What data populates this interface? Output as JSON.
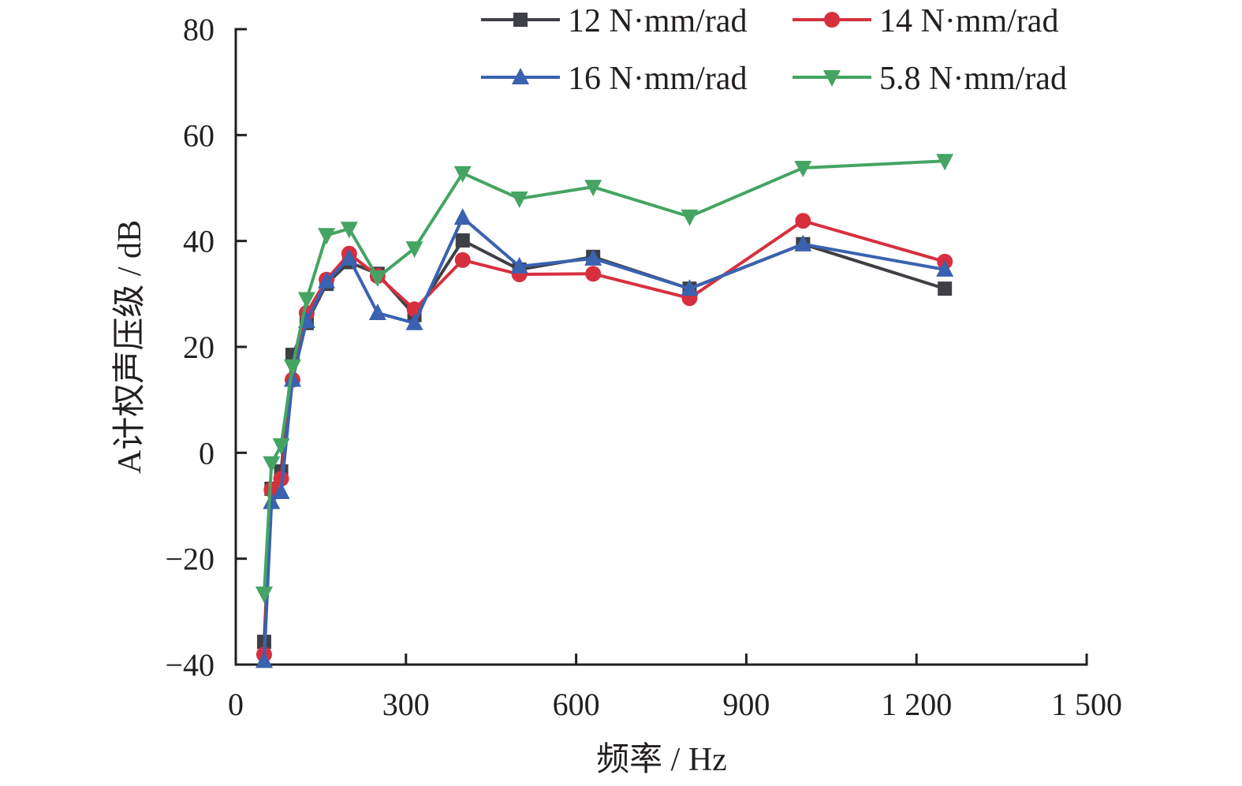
{
  "chart_data": {
    "type": "line",
    "title": "",
    "xlabel": "频率 / Hz",
    "ylabel": "A计权声压级 / dB",
    "xlim": [
      0,
      1500
    ],
    "ylim": [
      -40,
      80
    ],
    "xticks": [
      0,
      300,
      600,
      900,
      1200,
      1500
    ],
    "xtick_labels": [
      "0",
      "300",
      "600",
      "900",
      "1 200",
      "1 500"
    ],
    "yticks": [
      -40,
      -20,
      0,
      20,
      40,
      60,
      80
    ],
    "ytick_labels": [
      "−40",
      "−20",
      "0",
      "20",
      "40",
      "60",
      "80"
    ],
    "grid": false,
    "legend_position": "top-right",
    "x": [
      50,
      63,
      80,
      100,
      125,
      160,
      200,
      250,
      315,
      400,
      500,
      630,
      800,
      1000,
      1250
    ],
    "series": [
      {
        "name": "12 N·mm/rad",
        "color": "#3f4045",
        "marker": "square",
        "values": [
          -35.7,
          -6.8,
          -3.5,
          18.5,
          24.5,
          31.9,
          36.0,
          33.8,
          26.0,
          40.1,
          34.6,
          37.0,
          31.0,
          39.4,
          31.0
        ]
      },
      {
        "name": "14 N·mm/rad",
        "color": "#d6303f",
        "marker": "circle",
        "values": [
          -38.1,
          -7.0,
          -4.9,
          13.8,
          26.4,
          32.7,
          37.6,
          33.4,
          27.1,
          36.4,
          33.7,
          33.8,
          29.2,
          43.8,
          36.1
        ]
      },
      {
        "name": "16 N·mm/rad",
        "color": "#3a62b0",
        "marker": "triangle-up",
        "values": [
          -39.3,
          -9.3,
          -7.4,
          13.8,
          24.9,
          32.4,
          36.7,
          26.4,
          24.5,
          44.4,
          35.2,
          36.7,
          31.0,
          39.4,
          34.6
        ]
      },
      {
        "name": "5.8 N·mm/rad",
        "color": "#45a463",
        "marker": "triangle-down",
        "values": [
          -26.6,
          -2.0,
          1.4,
          16.3,
          29.0,
          41.1,
          42.3,
          33.1,
          38.6,
          52.8,
          48.0,
          50.2,
          44.6,
          53.8,
          55.1
        ]
      }
    ]
  }
}
